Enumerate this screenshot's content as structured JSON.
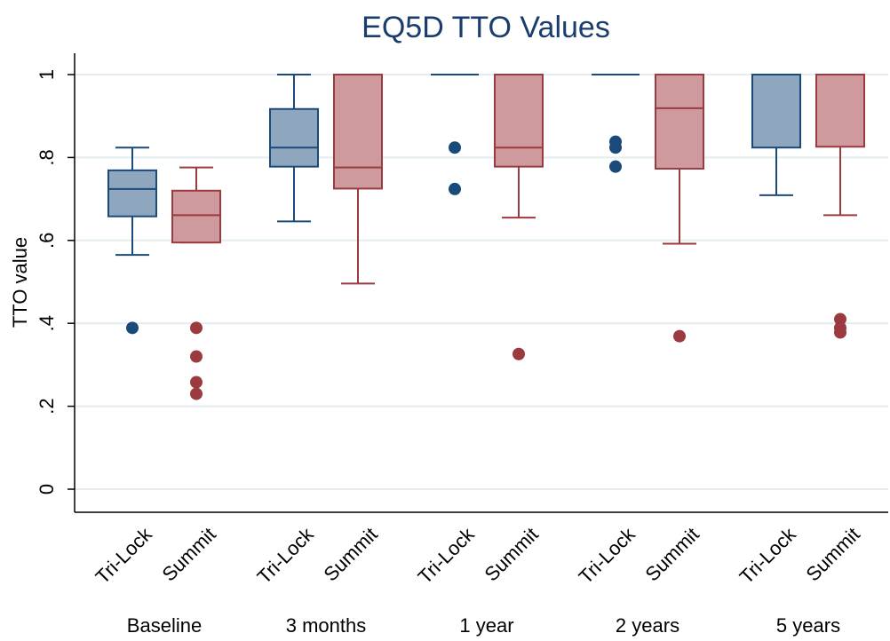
{
  "chart_data": {
    "type": "box",
    "title": "EQ5D TTO Values",
    "ylabel": "TTO value",
    "xlabel": "",
    "ylim": [
      -0.06,
      1.06
    ],
    "yticks": [
      0,
      0.2,
      0.4,
      0.6,
      0.8,
      1
    ],
    "ytick_labels": [
      "0",
      ".2",
      ".4",
      ".6",
      ".8",
      "1"
    ],
    "grid": true,
    "groups": [
      "Baseline",
      "3 months",
      "1 year",
      "2 years",
      "5 years"
    ],
    "series": [
      {
        "name": "Tri-Lock",
        "color": "#1a4a7a",
        "fill": "#8fa6bf",
        "boxes": [
          {
            "whisker_low": 0.565,
            "q1": 0.658,
            "median": 0.724,
            "q3": 0.769,
            "whisker_high": 0.824,
            "outliers": [
              0.389
            ]
          },
          {
            "whisker_low": 0.646,
            "q1": 0.778,
            "median": 0.824,
            "q3": 0.917,
            "whisker_high": 1.0,
            "outliers": []
          },
          {
            "whisker_low": 1.0,
            "q1": 1.0,
            "median": 1.0,
            "q3": 1.0,
            "whisker_high": 1.0,
            "outliers": [
              0.824,
              0.724
            ]
          },
          {
            "whisker_low": 1.0,
            "q1": 1.0,
            "median": 1.0,
            "q3": 1.0,
            "whisker_high": 1.0,
            "outliers": [
              0.838,
              0.824,
              0.778
            ]
          },
          {
            "whisker_low": 0.709,
            "q1": 0.824,
            "median": 1.0,
            "q3": 1.0,
            "whisker_high": 1.0,
            "outliers": []
          }
        ]
      },
      {
        "name": "Summit",
        "color": "#9b3a3f",
        "fill": "#cf9a9e",
        "boxes": [
          {
            "whisker_low": 0.595,
            "q1": 0.595,
            "median": 0.661,
            "q3": 0.72,
            "whisker_high": 0.776,
            "outliers": [
              0.389,
              0.32,
              0.258,
              0.23
            ]
          },
          {
            "whisker_low": 0.496,
            "q1": 0.725,
            "median": 0.776,
            "q3": 1.0,
            "whisker_high": 1.0,
            "outliers": []
          },
          {
            "whisker_low": 0.655,
            "q1": 0.778,
            "median": 0.824,
            "q3": 1.0,
            "whisker_high": 1.0,
            "outliers": [
              0.326
            ]
          },
          {
            "whisker_low": 0.592,
            "q1": 0.773,
            "median": 0.919,
            "q3": 1.0,
            "whisker_high": 1.0,
            "outliers": [
              0.369
            ]
          },
          {
            "whisker_low": 0.661,
            "q1": 0.826,
            "median": 1.0,
            "q3": 1.0,
            "whisker_high": 1.0,
            "outliers": [
              0.41,
              0.389,
              0.378
            ]
          }
        ]
      }
    ]
  }
}
